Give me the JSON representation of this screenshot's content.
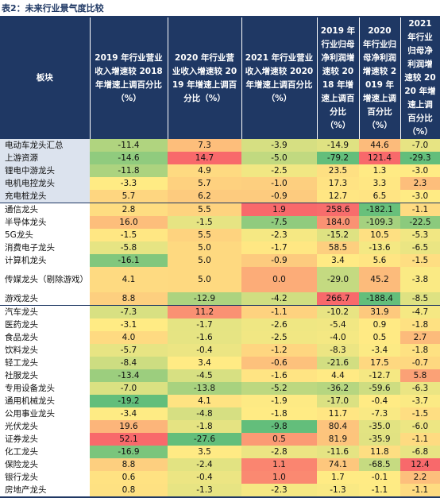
{
  "caption": "表2：未来行业景气度比较",
  "table": {
    "header": [
      "板块",
      "2019 年行业营业收入增速较 2018 年增速上调百分比（%）",
      "2020 年行业营业收入增速较 2019 年增速上调百分比（%）",
      "2021 年行业营业收入增速较 2020 年增速上调百分比（%）",
      "2019 年行业归母净利润增速较 2018 年增速上调百分比（%）",
      "2020 年行业归母净利润增速较 2019 年增速上调百分比（%）",
      "2021 年行业归母净利润增速较 2020 年增速上调百分比（%）"
    ],
    "rows": [
      [
        "电动车龙头汇总",
        "-11.4",
        "7.3",
        "-3.9",
        "-14.9",
        "44.6",
        "-7.0"
      ],
      [
        "上游资源",
        "-14.6",
        "14.7",
        "-5.0",
        "-79.2",
        "121.4",
        "-29.3"
      ],
      [
        "锂电中游龙头",
        "-11.8",
        "4.9",
        "-2.5",
        "23.5",
        "1.3",
        "-3.0"
      ],
      [
        "电机电控龙头",
        "-3.3",
        "5.7",
        "-1.0",
        "17.3",
        "3.3",
        "2.3"
      ],
      [
        "充电桩龙头",
        "5.7",
        "6.2",
        "-0.9",
        "12.7",
        "6.5",
        "-3.0"
      ],
      [
        "通信龙头",
        "2.8",
        "5.5",
        "1.9",
        "258.6",
        "-182.1",
        "-1.1"
      ],
      [
        "半导体龙头",
        "16.0",
        "-1.5",
        "-7.5",
        "184.0",
        "-109.3",
        "-22.5"
      ],
      [
        "5G龙头",
        "-1.5",
        "5.5",
        "-2.3",
        "-15.2",
        "10.5",
        "-5.3"
      ],
      [
        "消费电子龙头",
        "-5.8",
        "5.0",
        "-1.7",
        "58.5",
        "-13.6",
        "-6.5"
      ],
      [
        "计算机龙头",
        "-16.1",
        "5.0",
        "-0.9",
        "3.4",
        "5.6",
        "-1.5"
      ],
      [
        "传媒龙头（剔除游戏）",
        "4.1",
        "5.0",
        "0.0",
        "-29.0",
        "45.2",
        "-3.8"
      ],
      [
        "游戏龙头",
        "8.8",
        "-12.9",
        "-4.2",
        "266.7",
        "-188.4",
        "-8.5"
      ],
      [
        "汽车龙头",
        "-7.3",
        "11.2",
        "-1.1",
        "-10.2",
        "31.9",
        "-4.7"
      ],
      [
        "医药龙头",
        "-3.1",
        "-1.7",
        "-2.6",
        "-5.4",
        "0.9",
        "-1.8"
      ],
      [
        "食品龙头",
        "4.0",
        "-1.6",
        "-2.5",
        "-4.0",
        "0.5",
        "2.7"
      ],
      [
        "饮料龙头",
        "-5.7",
        "-0.4",
        "-1.2",
        "-8.3",
        "-3.4",
        "-1.8"
      ],
      [
        "轻工龙头",
        "-8.4",
        "3.4",
        "-0.6",
        "-21.6",
        "17.5",
        "-0.7"
      ],
      [
        "社服龙头",
        "-13.4",
        "-4.5",
        "-1.6",
        "4.4",
        "-12.7",
        "5.8"
      ],
      [
        "专用设备龙头",
        "-7.0",
        "-13.8",
        "-5.2",
        "-36.2",
        "-59.6",
        "-6.3"
      ],
      [
        "通用机械龙头",
        "-19.2",
        "4.1",
        "-1.9",
        "-17.0",
        "-0.4",
        "-3.7"
      ],
      [
        "公用事业龙头",
        "-3.4",
        "-4.8",
        "-1.8",
        "11.7",
        "-7.3",
        "-1.5"
      ],
      [
        "光伏龙头",
        "19.6",
        "-1.8",
        "-9.8",
        "80.4",
        "-35.0",
        "-6.0"
      ],
      [
        "证券龙头",
        "52.1",
        "-27.6",
        "0.5",
        "81.9",
        "-35.9",
        "-1.1"
      ],
      [
        "化工龙头",
        "-16.9",
        "3.5",
        "-2.8",
        "-11.6",
        "11.8",
        "-6.8"
      ],
      [
        "保险龙头",
        "8.8",
        "-2.4",
        "1.1",
        "74.1",
        "-68.5",
        "12.4"
      ],
      [
        "银行龙头",
        "0.6",
        "-0.4",
        "1.0",
        "1.7",
        "-0.1",
        "2.2"
      ],
      [
        "房地产龙头",
        "0.8",
        "-1.3",
        "-2.3",
        "-1.3",
        "-1.1",
        "-1.1"
      ]
    ]
  }
}
